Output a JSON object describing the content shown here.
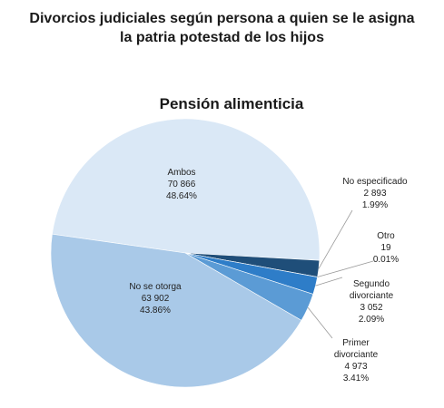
{
  "page": {
    "title_line1": "Divorcios judiciales según persona a quien se le asigna",
    "title_line2": "la patria potestad de los hijos"
  },
  "chart_data": {
    "type": "pie",
    "title": "Pensión alimenticia",
    "slices": [
      {
        "name": "Ambos",
        "value": 70866,
        "value_label": "70 866",
        "percent": 48.64,
        "percent_label": "48.64%",
        "color": "#dae8f6"
      },
      {
        "name": "No especificado",
        "value": 2893,
        "value_label": "2 893",
        "percent": 1.99,
        "percent_label": "1.99%",
        "color": "#1f4e79"
      },
      {
        "name": "Otro",
        "value": 19,
        "value_label": "19",
        "percent": 0.01,
        "percent_label": "0.01%",
        "color": "#2e75b6"
      },
      {
        "name": "Segundo divorciante",
        "value": 3052,
        "value_label": "3 052",
        "percent": 2.09,
        "percent_label": "2.09%",
        "color": "#2e7dc8"
      },
      {
        "name": "Primer divorciante",
        "value": 4973,
        "value_label": "4 973",
        "percent": 3.41,
        "percent_label": "3.41%",
        "color": "#5b9bd5"
      },
      {
        "name": "No se otorga",
        "value": 63902,
        "value_label": "63 902",
        "percent": 43.86,
        "percent_label": "43.86%",
        "color": "#a9c9e8"
      }
    ]
  }
}
